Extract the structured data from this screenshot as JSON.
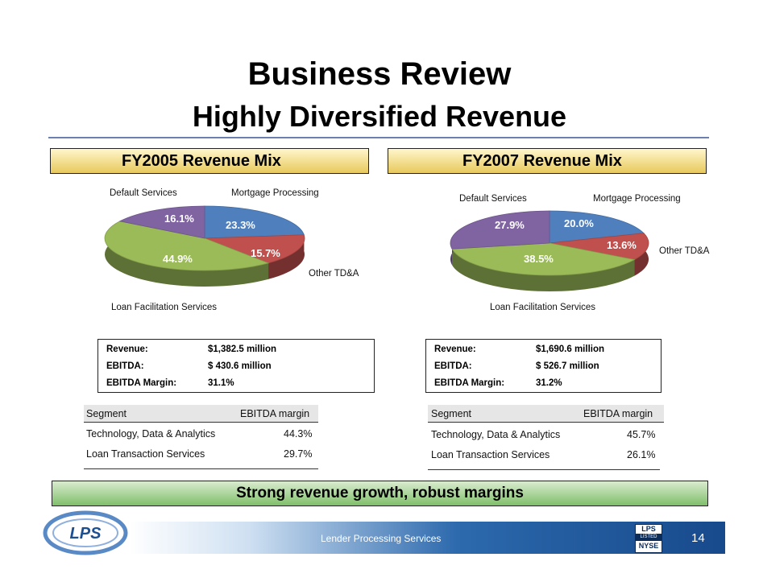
{
  "title": "Business Review",
  "subtitle": "Highly Diversified Revenue",
  "left": {
    "header": "FY2005 Revenue Mix",
    "labels": {
      "default_services": "Default Services",
      "mortgage_processing": "Mortgage Processing",
      "other_tda": "Other TD&A",
      "loan_facilitation": "Loan Facilitation Services"
    },
    "info": {
      "revenue_label": "Revenue:",
      "revenue_value": "$1,382.5 million",
      "ebitda_label": "EBITDA:",
      "ebitda_value": "$ 430.6 million",
      "margin_label": "EBITDA Margin:",
      "margin_value": "31.1%"
    },
    "segments": {
      "col_segment": "Segment",
      "col_margin": "EBITDA margin",
      "rows": [
        {
          "name": "Technology, Data & Analytics",
          "margin": "44.3%"
        },
        {
          "name": "Loan Transaction Services",
          "margin": "29.7%"
        }
      ]
    }
  },
  "right": {
    "header": "FY2007 Revenue Mix",
    "labels": {
      "default_services": "Default Services",
      "mortgage_processing": "Mortgage Processing",
      "other_tda": "Other TD&A",
      "loan_facilitation": "Loan Facilitation Services"
    },
    "info": {
      "revenue_label": "Revenue:",
      "revenue_value": "$1,690.6 million",
      "ebitda_label": "EBITDA:",
      "ebitda_value": "$ 526.7 million",
      "margin_label": "EBITDA Margin:",
      "margin_value": "31.2%"
    },
    "segments": {
      "col_segment": "Segment",
      "col_margin": "EBITDA margin",
      "rows": [
        {
          "name": "Technology, Data & Analytics",
          "margin": "45.7%"
        },
        {
          "name": "Loan Transaction Services",
          "margin": "26.1%"
        }
      ]
    }
  },
  "chart_data": [
    {
      "type": "pie",
      "title": "FY2005 Revenue Mix",
      "categories": [
        "Mortgage Processing",
        "Other TD&A",
        "Loan Facilitation Services",
        "Default Services"
      ],
      "values": [
        23.3,
        15.7,
        44.9,
        16.1
      ],
      "value_labels": [
        "23.3%",
        "15.7%",
        "44.9%",
        "16.1%"
      ],
      "colors": [
        "#4f7fbd",
        "#c0504d",
        "#9bbb59",
        "#8064a2"
      ]
    },
    {
      "type": "pie",
      "title": "FY2007 Revenue Mix",
      "categories": [
        "Mortgage Processing",
        "Other TD&A",
        "Loan Facilitation Services",
        "Default Services"
      ],
      "values": [
        20.0,
        13.6,
        38.5,
        27.9
      ],
      "value_labels": [
        "20.0%",
        "13.6%",
        "38.5%",
        "27.9%"
      ],
      "colors": [
        "#4f7fbd",
        "#c0504d",
        "#9bbb59",
        "#8064a2"
      ]
    }
  ],
  "banner": "Strong revenue growth, robust margins",
  "footer": {
    "company": "Lender Processing Services",
    "page": "14",
    "logo_text": "LPS",
    "badge_top": "LPS",
    "badge_mid": "LISTED",
    "badge_bottom": "NYSE"
  }
}
